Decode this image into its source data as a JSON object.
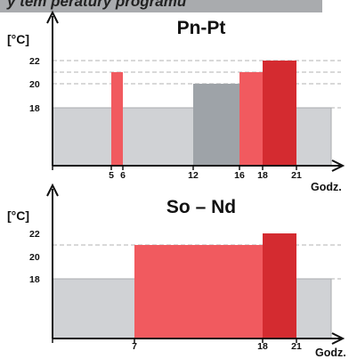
{
  "header": {
    "text": "y tem peratury programu"
  },
  "colors": {
    "base": "#d0d2d5",
    "base_stroke": "#a9abae",
    "mid_gray": "#9ea3a8",
    "light_red": "#f15a5f",
    "dark_red": "#d42b30",
    "axis": "#111111",
    "gridline": "#9a9a9a"
  },
  "chart_data": [
    {
      "type": "bar",
      "title": "Pn-Pt",
      "ylabel": "[°C]",
      "xlabel": "Godz.",
      "y_ticks": [
        "18",
        "20",
        "22"
      ],
      "x_ticks": [
        "5",
        "6",
        "12",
        "16",
        "18",
        "21"
      ],
      "xlim": [
        0,
        24
      ],
      "ylim": [
        10,
        26
      ],
      "dashed_lines": [
        18,
        20,
        21,
        22
      ],
      "segments": [
        {
          "start": 0,
          "end": 24,
          "value": 18,
          "color": "base"
        },
        {
          "start": 5,
          "end": 6,
          "value": 21,
          "color": "light_red"
        },
        {
          "start": 12,
          "end": 16,
          "value": 20,
          "color": "mid_gray"
        },
        {
          "start": 16,
          "end": 18,
          "value": 21,
          "color": "light_red"
        },
        {
          "start": 18,
          "end": 21,
          "value": 22,
          "color": "dark_red"
        }
      ]
    },
    {
      "type": "bar",
      "title": "So – Nd",
      "ylabel": "[°C]",
      "xlabel": "Godz.",
      "y_ticks": [
        "18",
        "20",
        "22"
      ],
      "x_ticks": [
        "7",
        "18",
        "21"
      ],
      "xlim": [
        0,
        24
      ],
      "ylim": [
        10,
        26
      ],
      "dashed_lines": [
        18,
        21
      ],
      "segments": [
        {
          "start": 0,
          "end": 24,
          "value": 18,
          "color": "base"
        },
        {
          "start": 7,
          "end": 18,
          "value": 21,
          "color": "light_red"
        },
        {
          "start": 18,
          "end": 21,
          "value": 22,
          "color": "dark_red"
        }
      ]
    }
  ]
}
